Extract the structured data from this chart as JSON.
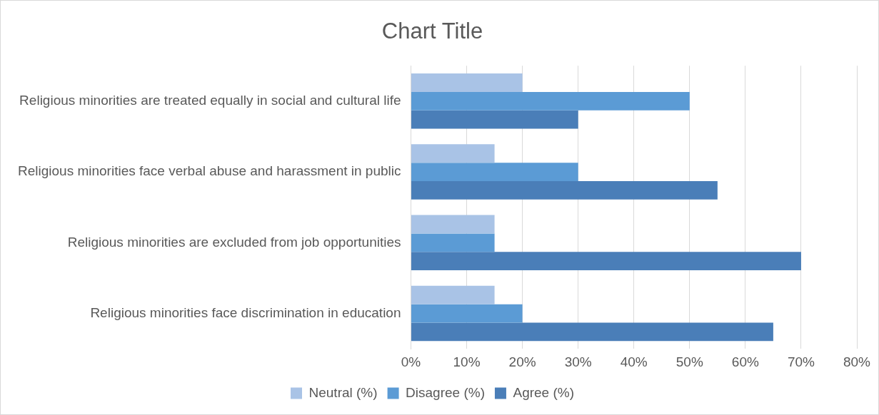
{
  "chart_data": {
    "type": "bar",
    "orientation": "horizontal",
    "title": "Chart Title",
    "categories": [
      "Religious minorities are treated equally in social and cultural life",
      "Religious minorities face verbal abuse and harassment in public",
      "Religious minorities are excluded from job opportunities",
      "Religious minorities face discrimination in education"
    ],
    "series": [
      {
        "name": "Neutral (%)",
        "color": "#a9c3e6",
        "values": [
          20,
          15,
          15,
          15
        ]
      },
      {
        "name": "Disagree (%)",
        "color": "#5b9bd5",
        "values": [
          50,
          30,
          15,
          20
        ]
      },
      {
        "name": "Agree (%)",
        "color": "#4a7eb8",
        "values": [
          30,
          55,
          70,
          65
        ]
      }
    ],
    "xlim": [
      0,
      80
    ],
    "xticks": [
      {
        "value": 0,
        "label": "0%"
      },
      {
        "value": 10,
        "label": "10%"
      },
      {
        "value": 20,
        "label": "20%"
      },
      {
        "value": 30,
        "label": "30%"
      },
      {
        "value": 40,
        "label": "40%"
      },
      {
        "value": 50,
        "label": "50%"
      },
      {
        "value": 60,
        "label": "60%"
      },
      {
        "value": 70,
        "label": "70%"
      },
      {
        "value": 80,
        "label": "80%"
      }
    ],
    "grid": "x",
    "legend": "bottom"
  }
}
